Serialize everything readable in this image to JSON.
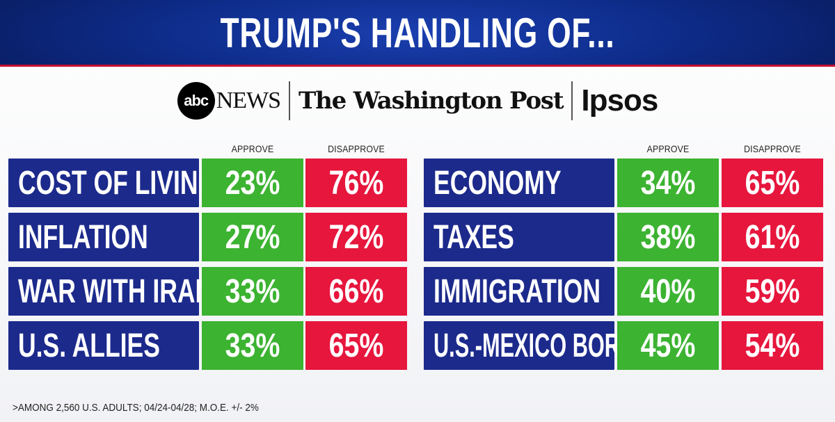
{
  "header": {
    "title": "TRUMP'S HANDLING OF..."
  },
  "logos": {
    "abc_mark": "abc",
    "abc_news": "NEWS",
    "washington_post": "The Washington Post",
    "ipsos": "Ipsos"
  },
  "columns": {
    "approve": "APPROVE",
    "disapprove": "DISAPPROVE"
  },
  "chart_data": {
    "type": "table",
    "title": "TRUMP'S HANDLING OF...",
    "columns": [
      "APPROVE",
      "DISAPPROVE"
    ],
    "left": [
      {
        "issue": "COST OF LIVING",
        "approve": "23%",
        "disapprove": "76%"
      },
      {
        "issue": "INFLATION",
        "approve": "27%",
        "disapprove": "72%"
      },
      {
        "issue": "WAR WITH IRAN",
        "approve": "33%",
        "disapprove": "66%"
      },
      {
        "issue": "U.S. ALLIES",
        "approve": "33%",
        "disapprove": "65%"
      }
    ],
    "right": [
      {
        "issue": "ECONOMY",
        "approve": "34%",
        "disapprove": "65%"
      },
      {
        "issue": "TAXES",
        "approve": "38%",
        "disapprove": "61%"
      },
      {
        "issue": "IMMIGRATION",
        "approve": "40%",
        "disapprove": "59%"
      },
      {
        "issue": "U.S.-MEXICO BORDER",
        "approve": "45%",
        "disapprove": "54%"
      }
    ]
  },
  "footnote": ">AMONG 2,560 U.S. ADULTS; 04/24-04/28; M.O.E. +/- 2%",
  "colors": {
    "label_bg": "#1c2a8c",
    "approve_bg": "#3cb331",
    "disapprove_bg": "#e6163d",
    "accent_line": "#c8102e"
  }
}
